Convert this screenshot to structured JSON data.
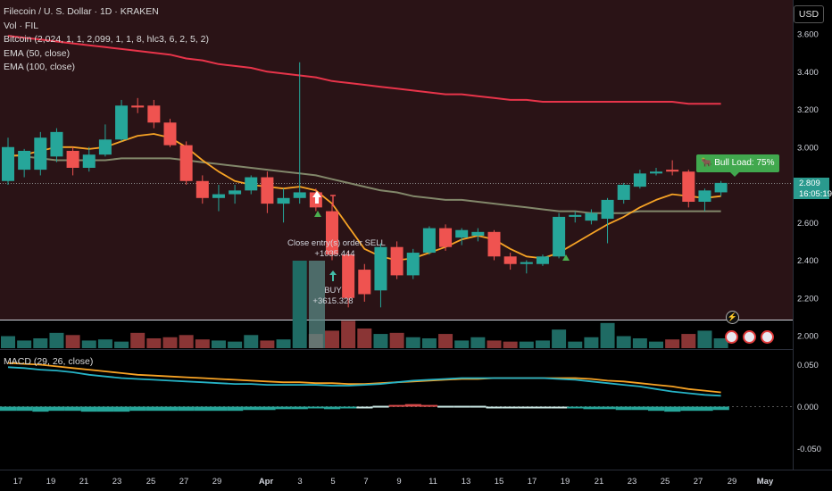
{
  "legend": {
    "title": "Filecoin / U. S. Dollar · 1D · KRAKEN",
    "vol": "Vol · FIL",
    "indicator": "Bitcoin (2,024, 1, 1, 2,099, 1, 1, 8, hlc3, 6, 2, 5, 2)",
    "ema50": "EMA (50, close)",
    "ema100": "EMA (100, close)"
  },
  "macd_legend": "MACD (29, 26, close)",
  "currency_button": "USD",
  "price_tag": {
    "price": "2.809",
    "countdown": "16:05:19"
  },
  "bull_label": "🐂 Bull Load: 75%",
  "annotations": {
    "close_label": "Close entry(s) order SELL",
    "close_value": "+1035.444",
    "buy_label": "BUY",
    "buy_value": "+3615.328"
  },
  "colors": {
    "up": "#26a69a",
    "down": "#ef5350",
    "ema50": "#82876a",
    "ema100": "#e8344a",
    "fast": "#f7a325",
    "macd": "#26b3c6",
    "signal": "#f7a325",
    "bg_price": "#2a1316"
  },
  "price_axis": [
    "3.600",
    "3.400",
    "3.200",
    "3.000",
    "2.800",
    "2.600",
    "2.400",
    "2.200",
    "2.000"
  ],
  "macd_axis": [
    "0.050",
    "0.000",
    "-0.050"
  ],
  "x_axis": [
    "17",
    "19",
    "21",
    "23",
    "25",
    "27",
    "29",
    "Apr",
    "3",
    "5",
    "7",
    "9",
    "11",
    "13",
    "15",
    "17",
    "19",
    "21",
    "23",
    "25",
    "27",
    "29",
    "May"
  ],
  "chart_data": {
    "type": "candlestick",
    "ylim": [
      2.0,
      3.65
    ],
    "candles": [
      {
        "o": 2.82,
        "h": 3.05,
        "l": 2.8,
        "c": 3.0
      },
      {
        "o": 2.88,
        "h": 2.99,
        "l": 2.84,
        "c": 2.98
      },
      {
        "o": 2.88,
        "h": 3.08,
        "l": 2.85,
        "c": 3.05
      },
      {
        "o": 2.95,
        "h": 3.1,
        "l": 2.92,
        "c": 3.08
      },
      {
        "o": 2.98,
        "h": 3.0,
        "l": 2.85,
        "c": 2.89
      },
      {
        "o": 2.89,
        "h": 3.0,
        "l": 2.87,
        "c": 2.96
      },
      {
        "o": 2.96,
        "h": 3.12,
        "l": 2.95,
        "c": 3.04
      },
      {
        "o": 3.04,
        "h": 3.25,
        "l": 3.03,
        "c": 3.22
      },
      {
        "o": 3.22,
        "h": 3.26,
        "l": 3.18,
        "c": 3.21
      },
      {
        "o": 3.22,
        "h": 3.25,
        "l": 3.1,
        "c": 3.13
      },
      {
        "o": 3.13,
        "h": 3.15,
        "l": 3.0,
        "c": 3.01
      },
      {
        "o": 3.01,
        "h": 3.03,
        "l": 2.8,
        "c": 2.82
      },
      {
        "o": 2.82,
        "h": 2.85,
        "l": 2.7,
        "c": 2.73
      },
      {
        "o": 2.73,
        "h": 2.8,
        "l": 2.66,
        "c": 2.75
      },
      {
        "o": 2.75,
        "h": 2.8,
        "l": 2.7,
        "c": 2.77
      },
      {
        "o": 2.77,
        "h": 2.85,
        "l": 2.75,
        "c": 2.84
      },
      {
        "o": 2.84,
        "h": 2.87,
        "l": 2.65,
        "c": 2.7
      },
      {
        "o": 2.7,
        "h": 2.78,
        "l": 2.6,
        "c": 2.73
      },
      {
        "o": 2.73,
        "h": 3.45,
        "l": 2.7,
        "c": 2.76
      },
      {
        "o": 2.76,
        "h": 2.78,
        "l": 2.66,
        "c": 2.68
      },
      {
        "o": 2.66,
        "h": 2.7,
        "l": 2.4,
        "c": 2.43
      },
      {
        "o": 2.43,
        "h": 2.45,
        "l": 2.15,
        "c": 2.2
      },
      {
        "o": 2.35,
        "h": 2.38,
        "l": 2.18,
        "c": 2.22
      },
      {
        "o": 2.24,
        "h": 2.49,
        "l": 2.15,
        "c": 2.47
      },
      {
        "o": 2.47,
        "h": 2.5,
        "l": 2.3,
        "c": 2.32
      },
      {
        "o": 2.32,
        "h": 2.46,
        "l": 2.3,
        "c": 2.44
      },
      {
        "o": 2.44,
        "h": 2.58,
        "l": 2.43,
        "c": 2.57
      },
      {
        "o": 2.57,
        "h": 2.59,
        "l": 2.45,
        "c": 2.47
      },
      {
        "o": 2.52,
        "h": 2.57,
        "l": 2.48,
        "c": 2.56
      },
      {
        "o": 2.53,
        "h": 2.57,
        "l": 2.5,
        "c": 2.55
      },
      {
        "o": 2.55,
        "h": 2.56,
        "l": 2.4,
        "c": 2.42
      },
      {
        "o": 2.42,
        "h": 2.44,
        "l": 2.35,
        "c": 2.38
      },
      {
        "o": 2.38,
        "h": 2.4,
        "l": 2.33,
        "c": 2.39
      },
      {
        "o": 2.38,
        "h": 2.43,
        "l": 2.37,
        "c": 2.42
      },
      {
        "o": 2.42,
        "h": 2.65,
        "l": 2.41,
        "c": 2.63
      },
      {
        "o": 2.63,
        "h": 2.66,
        "l": 2.6,
        "c": 2.64
      },
      {
        "o": 2.61,
        "h": 2.67,
        "l": 2.59,
        "c": 2.65
      },
      {
        "o": 2.62,
        "h": 2.73,
        "l": 2.49,
        "c": 2.72
      },
      {
        "o": 2.72,
        "h": 2.81,
        "l": 2.7,
        "c": 2.8
      },
      {
        "o": 2.79,
        "h": 2.88,
        "l": 2.78,
        "c": 2.86
      },
      {
        "o": 2.86,
        "h": 2.89,
        "l": 2.85,
        "c": 2.87
      },
      {
        "o": 2.88,
        "h": 2.93,
        "l": 2.85,
        "c": 2.87
      },
      {
        "o": 2.87,
        "h": 2.88,
        "l": 2.68,
        "c": 2.71
      },
      {
        "o": 2.71,
        "h": 2.78,
        "l": 2.66,
        "c": 2.77
      },
      {
        "o": 2.76,
        "h": 2.82,
        "l": 2.74,
        "c": 2.81
      }
    ],
    "volume": [
      1.1,
      0.7,
      0.9,
      1.4,
      1.2,
      0.7,
      0.8,
      0.6,
      1.4,
      0.9,
      1.0,
      1.2,
      0.8,
      0.7,
      0.6,
      1.2,
      0.7,
      0.8,
      8.0,
      1.3,
      1.6,
      2.5,
      1.8,
      1.3,
      1.4,
      1.0,
      0.9,
      1.3,
      0.7,
      1.0,
      0.7,
      0.6,
      0.6,
      0.7,
      1.7,
      0.6,
      1.0,
      2.3,
      1.1,
      0.9,
      0.6,
      0.8,
      1.3,
      1.6,
      0.9
    ],
    "ema50": [
      2.96,
      2.95,
      2.94,
      2.93,
      2.93,
      2.93,
      2.93,
      2.94,
      2.94,
      2.94,
      2.94,
      2.93,
      2.92,
      2.91,
      2.9,
      2.89,
      2.88,
      2.87,
      2.86,
      2.85,
      2.83,
      2.81,
      2.79,
      2.77,
      2.76,
      2.74,
      2.73,
      2.72,
      2.72,
      2.71,
      2.7,
      2.69,
      2.68,
      2.67,
      2.66,
      2.66,
      2.65,
      2.65,
      2.65,
      2.66,
      2.66,
      2.66,
      2.66,
      2.66,
      2.66
    ],
    "ema100": [
      3.59,
      3.58,
      3.57,
      3.56,
      3.55,
      3.54,
      3.53,
      3.52,
      3.51,
      3.5,
      3.49,
      3.47,
      3.46,
      3.44,
      3.43,
      3.42,
      3.4,
      3.39,
      3.38,
      3.37,
      3.35,
      3.34,
      3.33,
      3.32,
      3.31,
      3.3,
      3.29,
      3.28,
      3.28,
      3.27,
      3.26,
      3.25,
      3.25,
      3.24,
      3.24,
      3.24,
      3.24,
      3.24,
      3.24,
      3.24,
      3.24,
      3.24,
      3.23,
      3.23,
      3.23
    ],
    "fast": [
      2.95,
      2.96,
      2.98,
      3.0,
      3.0,
      2.99,
      3.0,
      3.03,
      3.06,
      3.07,
      3.05,
      3.0,
      2.93,
      2.87,
      2.82,
      2.8,
      2.79,
      2.78,
      2.79,
      2.77,
      2.7,
      2.58,
      2.46,
      2.42,
      2.4,
      2.41,
      2.44,
      2.47,
      2.51,
      2.53,
      2.51,
      2.46,
      2.42,
      2.41,
      2.44,
      2.49,
      2.54,
      2.59,
      2.63,
      2.68,
      2.72,
      2.75,
      2.74,
      2.73,
      2.74
    ],
    "macd": [
      0.047,
      0.046,
      0.044,
      0.043,
      0.041,
      0.038,
      0.036,
      0.034,
      0.033,
      0.032,
      0.031,
      0.03,
      0.029,
      0.028,
      0.027,
      0.027,
      0.026,
      0.026,
      0.026,
      0.026,
      0.025,
      0.025,
      0.026,
      0.027,
      0.029,
      0.031,
      0.032,
      0.033,
      0.034,
      0.034,
      0.034,
      0.034,
      0.034,
      0.034,
      0.033,
      0.032,
      0.03,
      0.028,
      0.026,
      0.024,
      0.021,
      0.018,
      0.016,
      0.014,
      0.013
    ],
    "signal": [
      0.052,
      0.051,
      0.05,
      0.048,
      0.046,
      0.044,
      0.042,
      0.04,
      0.038,
      0.037,
      0.036,
      0.035,
      0.034,
      0.033,
      0.032,
      0.031,
      0.03,
      0.029,
      0.029,
      0.028,
      0.028,
      0.027,
      0.027,
      0.028,
      0.029,
      0.03,
      0.031,
      0.032,
      0.033,
      0.033,
      0.034,
      0.034,
      0.034,
      0.034,
      0.034,
      0.034,
      0.033,
      0.031,
      0.03,
      0.028,
      0.026,
      0.024,
      0.021,
      0.019,
      0.017
    ],
    "hist": [
      -0.005,
      -0.005,
      -0.006,
      -0.005,
      -0.005,
      -0.006,
      -0.006,
      -0.006,
      -0.005,
      -0.005,
      -0.005,
      -0.005,
      -0.005,
      -0.005,
      -0.005,
      -0.004,
      -0.004,
      -0.003,
      -0.003,
      -0.002,
      -0.003,
      -0.002,
      -0.001,
      0.001,
      0.002,
      0.003,
      0.002,
      0.001,
      0.001,
      0.001,
      0.0,
      0.0,
      0.0,
      0.0,
      -0.001,
      -0.002,
      -0.003,
      -0.003,
      -0.004,
      -0.004,
      -0.005,
      -0.006,
      -0.005,
      -0.005,
      -0.004
    ],
    "macd_ylim": [
      -0.06,
      0.06
    ]
  }
}
